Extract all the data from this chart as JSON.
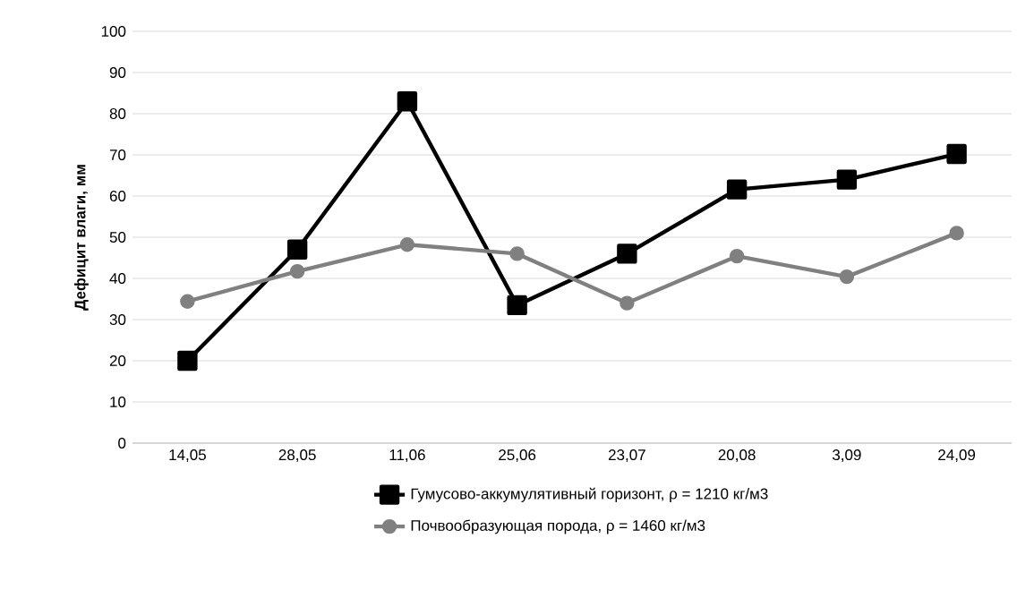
{
  "chart_data": {
    "type": "line",
    "ylabel": "Дефицит влаги, мм",
    "categories": [
      "14,05",
      "28,05",
      "11,06",
      "25,06",
      "23,07",
      "20,08",
      "3,09",
      "24,09"
    ],
    "series": [
      {
        "name": "Гумусово-аккумулятивный горизонт, ρ = 1210 кг/м3",
        "color": "#000000",
        "marker": "square",
        "values": [
          20,
          47,
          83,
          33.5,
          46,
          61.6,
          64,
          70.2
        ]
      },
      {
        "name": "Почвообразующая порода, ρ = 1460 кг/м3",
        "color": "#808080",
        "marker": "circle",
        "values": [
          34.4,
          41.7,
          48.2,
          46,
          34,
          45.4,
          40.4,
          51
        ]
      }
    ],
    "ylim": [
      0,
      100
    ],
    "yticks": [
      0,
      10,
      20,
      30,
      40,
      50,
      60,
      70,
      80,
      90,
      100
    ],
    "grid": "y",
    "legend": "bottom",
    "line_style": "solid"
  }
}
